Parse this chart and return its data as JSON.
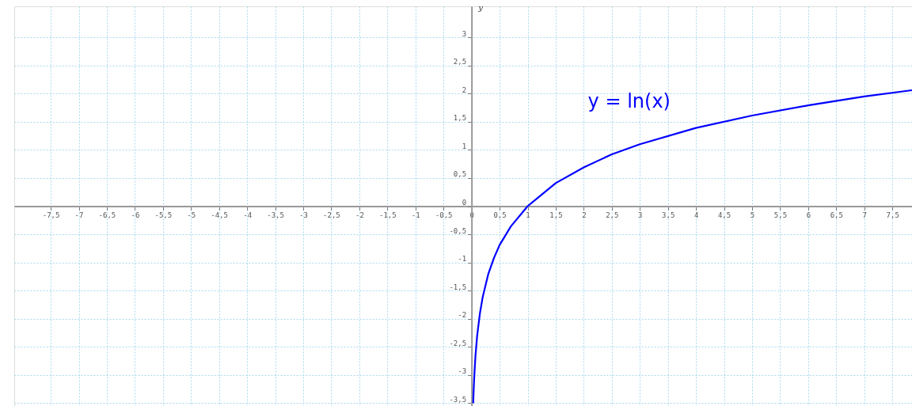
{
  "chart_data": {
    "type": "line",
    "ylabel": "y",
    "x": [
      0.03,
      0.035,
      0.04,
      0.05,
      0.07,
      0.1,
      0.15,
      0.2,
      0.3,
      0.4,
      0.5,
      0.7,
      1,
      1.5,
      2,
      2.5,
      3,
      4,
      5,
      6,
      7,
      7.85
    ],
    "series": [
      {
        "color": "#0000ff",
        "values": [
          -3.5,
          -3.35,
          -3.22,
          -3.0,
          -2.66,
          -2.3,
          -1.9,
          -1.61,
          -1.2,
          -0.92,
          -0.69,
          -0.36,
          0,
          0.41,
          0.69,
          0.92,
          1.1,
          1.39,
          1.61,
          1.79,
          1.95,
          2.06
        ]
      }
    ],
    "annotations": [
      "y = ln(x)"
    ],
    "xlim": [
      -8.15,
      7.85
    ],
    "ylim": [
      -3.55,
      3.55
    ],
    "xticks": [
      {
        "value": -7.5,
        "label": "-7,5"
      },
      -7,
      {
        "value": -6.5,
        "label": "-6,5"
      },
      -6,
      {
        "value": -5.5,
        "label": "-5,5"
      },
      -5,
      {
        "value": -4.5,
        "label": "-4,5"
      },
      -4,
      {
        "value": -3.5,
        "label": "-3,5"
      },
      -3,
      {
        "value": -2.5,
        "label": "-2,5"
      },
      -2,
      {
        "value": -1.5,
        "label": "-1,5"
      },
      -1,
      {
        "value": -0.5,
        "label": "-0,5"
      },
      0,
      {
        "value": 0.5,
        "label": "0,5"
      },
      1,
      {
        "value": 1.5,
        "label": "1,5"
      },
      2,
      {
        "value": 2.5,
        "label": "2,5"
      },
      3,
      {
        "value": 3.5,
        "label": "3,5"
      },
      4,
      {
        "value": 4.5,
        "label": "4,5"
      },
      5,
      {
        "value": 5.5,
        "label": "5,5"
      },
      6,
      {
        "value": 6.5,
        "label": "6,5"
      },
      7,
      {
        "value": 7.5,
        "label": "7,5"
      }
    ],
    "yticks": [
      {
        "value": -3.5,
        "label": "-3,5"
      },
      -3,
      {
        "value": -2.5,
        "label": "-2,5"
      },
      -2,
      {
        "value": -1.5,
        "label": "-1,5"
      },
      -1,
      {
        "value": -0.5,
        "label": "-0,5"
      },
      0,
      {
        "value": 0.5,
        "label": "0,5"
      },
      1,
      {
        "value": 1.5,
        "label": "1,5"
      },
      2,
      {
        "value": 2.5,
        "label": "2,5"
      },
      3
    ],
    "grid": true,
    "marker": "none",
    "line_style": "solid"
  }
}
